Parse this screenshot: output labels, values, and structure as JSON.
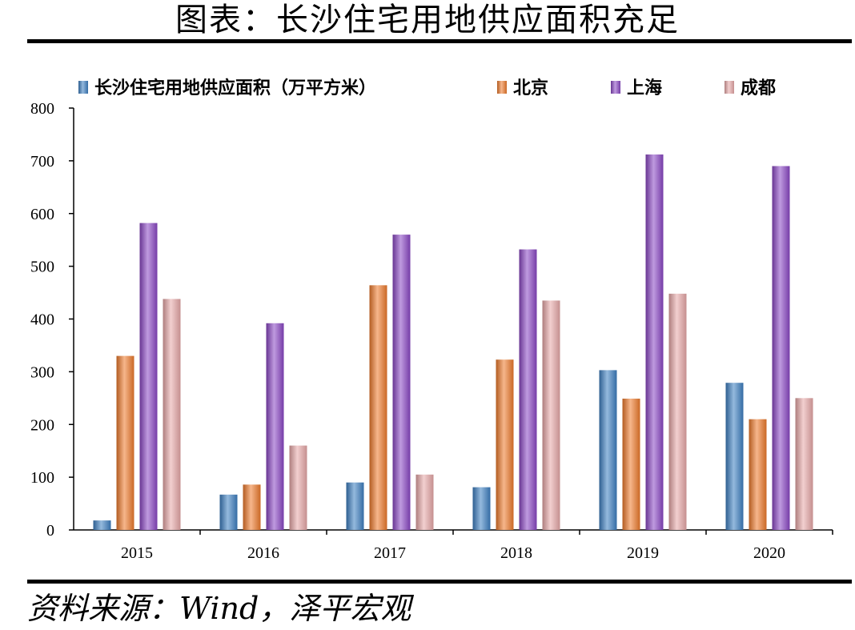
{
  "title": "图表：长沙住宅用地供应面积充足",
  "source": "资料来源：Wind，泽平宏观",
  "chart_data": {
    "type": "bar",
    "categories": [
      "2015",
      "2016",
      "2017",
      "2018",
      "2019",
      "2020"
    ],
    "series": [
      {
        "name": "长沙住宅用地供应面积（万平方米）",
        "color": "#3d7fc1",
        "values": [
          18,
          67,
          90,
          81,
          303,
          279
        ]
      },
      {
        "name": "北京",
        "color": "#ee7a2c",
        "values": [
          330,
          86,
          464,
          323,
          249,
          210
        ]
      },
      {
        "name": "上海",
        "color": "#8a47c4",
        "values": [
          582,
          392,
          560,
          532,
          712,
          690
        ]
      },
      {
        "name": "成都",
        "color": "#e8a8a8",
        "values": [
          438,
          160,
          105,
          435,
          448,
          250
        ]
      }
    ],
    "ylim": [
      0,
      800
    ],
    "yticks": [
      "0",
      "100",
      "200",
      "300",
      "400",
      "500",
      "600",
      "700",
      "800"
    ],
    "legend": "top",
    "grid": false
  }
}
